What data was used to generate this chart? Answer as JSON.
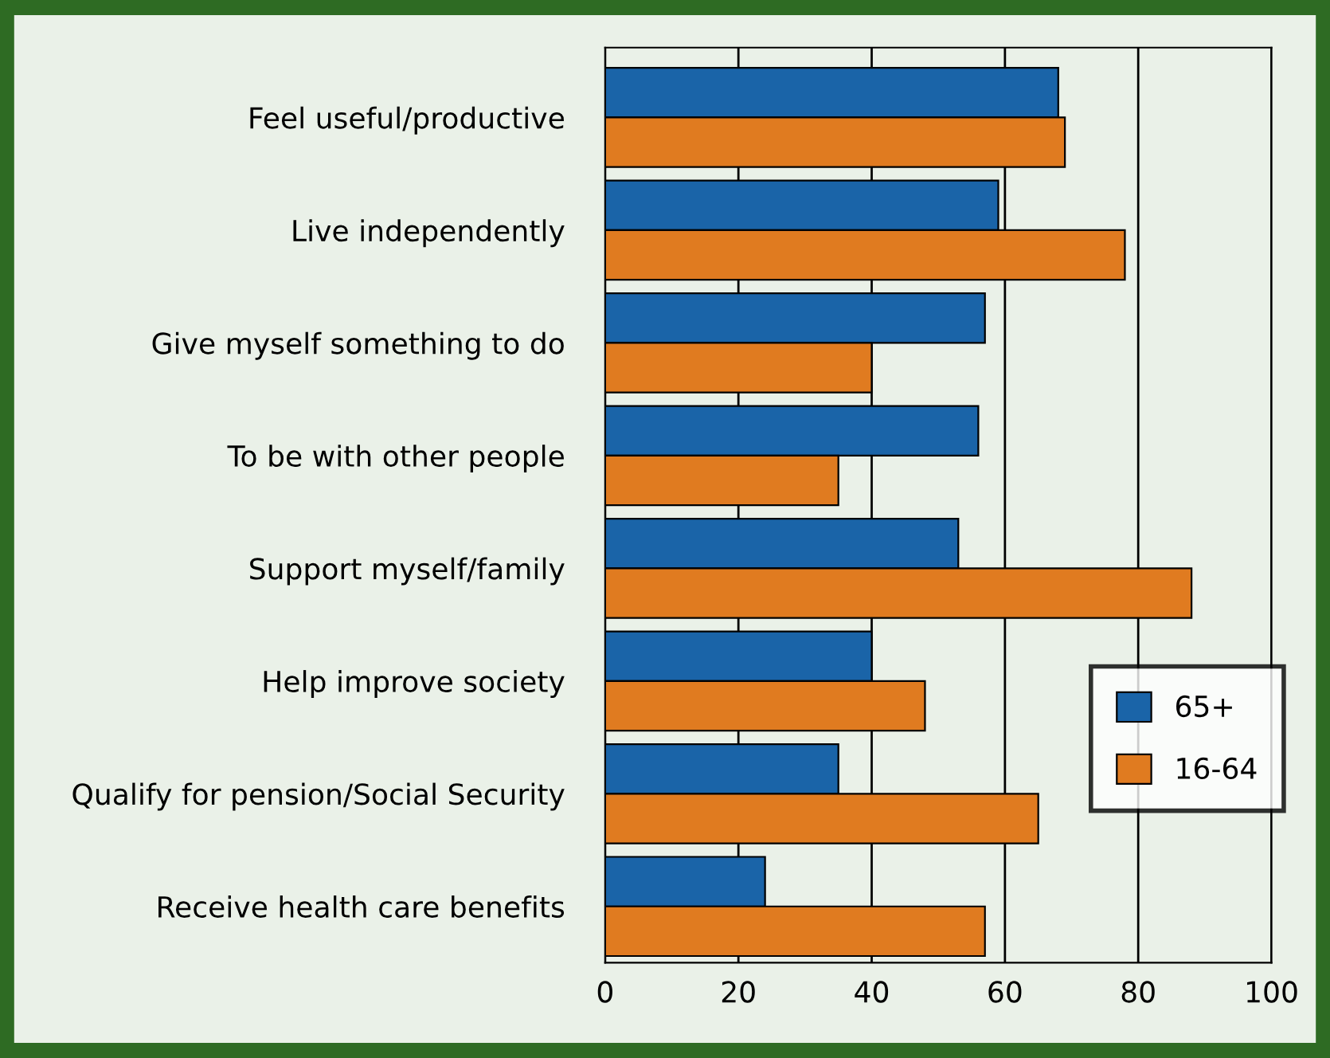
{
  "chart_data": {
    "type": "bar",
    "orientation": "horizontal",
    "categories": [
      "Feel useful/productive",
      "Live independently",
      "Give myself something to do",
      "To be with other people",
      "Support myself/family",
      "Help improve society",
      "Qualify for pension/Social Security",
      "Receive health care benefits"
    ],
    "series": [
      {
        "name": "65+",
        "color": "#1a64a8",
        "values": [
          68,
          59,
          57,
          56,
          53,
          40,
          35,
          24
        ]
      },
      {
        "name": "16-64",
        "color": "#e07b20",
        "values": [
          69,
          78,
          40,
          35,
          88,
          48,
          65,
          57
        ]
      }
    ],
    "xlim": [
      0,
      100
    ],
    "xticks": [
      0,
      20,
      40,
      60,
      80,
      100
    ],
    "grid": "x",
    "legend": "right"
  }
}
